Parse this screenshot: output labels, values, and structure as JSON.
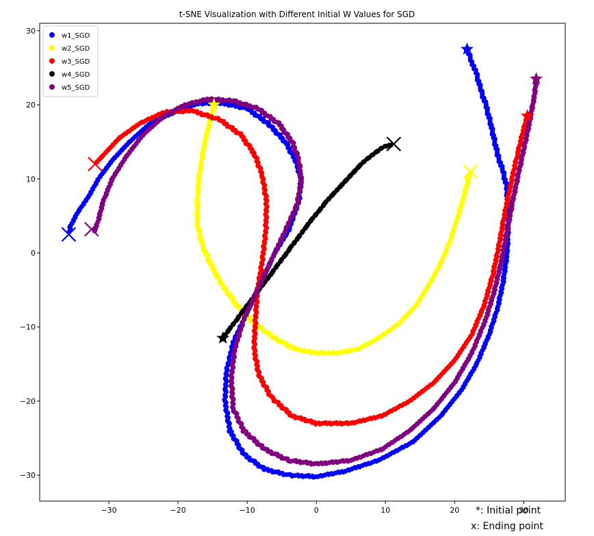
{
  "chart_data": {
    "type": "scatter",
    "title": "t-SNE Visualization with Different Initial W Values for SGD",
    "xlabel": "",
    "ylabel": "",
    "xlim": [
      -40,
      36
    ],
    "ylim": [
      -33.5,
      31
    ],
    "x_ticks": [
      -30,
      -20,
      -10,
      0,
      10,
      20,
      30
    ],
    "y_ticks": [
      -30,
      -20,
      -10,
      0,
      10,
      20,
      30
    ],
    "grid": false,
    "legend_position": "top-left",
    "start_marker": "star",
    "end_marker": "x",
    "notes": [
      "*: Initial point",
      "x: Ending point"
    ],
    "series": [
      {
        "name": "w1_SGD",
        "color": "#0000ff",
        "points": [
          [
            21.8,
            27.5
          ],
          [
            22.5,
            25.8
          ],
          [
            23.2,
            24.0
          ],
          [
            23.8,
            22.0
          ],
          [
            24.5,
            20.0
          ],
          [
            25.2,
            17.5
          ],
          [
            25.8,
            15.0
          ],
          [
            26.3,
            13.0
          ],
          [
            27.0,
            11.0
          ],
          [
            27.5,
            9.0
          ],
          [
            27.8,
            5.0
          ],
          [
            27.6,
            0.0
          ],
          [
            27.0,
            -4.0
          ],
          [
            26.2,
            -7.5
          ],
          [
            25.0,
            -11.0
          ],
          [
            23.2,
            -15.0
          ],
          [
            21.0,
            -18.5
          ],
          [
            18.0,
            -22.0
          ],
          [
            14.0,
            -25.5
          ],
          [
            9.0,
            -28.0
          ],
          [
            4.0,
            -29.5
          ],
          [
            0.0,
            -30.2
          ],
          [
            -4.0,
            -30.0
          ],
          [
            -7.5,
            -29.2
          ],
          [
            -10.5,
            -27.2
          ],
          [
            -12.5,
            -24.0
          ],
          [
            -13.2,
            -20.0
          ],
          [
            -13.0,
            -16.0
          ],
          [
            -12.0,
            -12.0
          ],
          [
            -10.0,
            -8.0
          ],
          [
            -8.0,
            -4.0
          ],
          [
            -6.0,
            0.0
          ],
          [
            -4.0,
            3.0
          ],
          [
            -2.5,
            7.0
          ],
          [
            -2.2,
            10.0
          ],
          [
            -3.0,
            12.5
          ],
          [
            -4.5,
            15.0
          ],
          [
            -7.0,
            17.5
          ],
          [
            -10.0,
            19.5
          ],
          [
            -13.5,
            20.2
          ],
          [
            -17.0,
            20.2
          ],
          [
            -20.5,
            19.0
          ],
          [
            -24.0,
            17.5
          ],
          [
            -27.0,
            15.0
          ],
          [
            -29.5,
            12.5
          ],
          [
            -31.5,
            10.0
          ],
          [
            -33.0,
            7.5
          ],
          [
            -34.5,
            5.5
          ],
          [
            -35.6,
            3.5
          ],
          [
            -35.8,
            2.5
          ]
        ]
      },
      {
        "name": "w2_SGD",
        "color": "#ffff00",
        "points": [
          [
            -14.8,
            20.0
          ],
          [
            -15.3,
            18.0
          ],
          [
            -16.0,
            15.5
          ],
          [
            -16.5,
            13.0
          ],
          [
            -17.0,
            10.0
          ],
          [
            -17.2,
            7.0
          ],
          [
            -17.2,
            4.0
          ],
          [
            -16.5,
            1.0
          ],
          [
            -15.0,
            -2.0
          ],
          [
            -13.5,
            -4.5
          ],
          [
            -11.5,
            -7.0
          ],
          [
            -9.0,
            -9.5
          ],
          [
            -6.0,
            -11.5
          ],
          [
            -3.0,
            -13.0
          ],
          [
            0.0,
            -13.5
          ],
          [
            3.0,
            -13.5
          ],
          [
            6.0,
            -13.0
          ],
          [
            9.0,
            -11.5
          ],
          [
            12.0,
            -9.5
          ],
          [
            14.5,
            -7.0
          ],
          [
            16.5,
            -4.0
          ],
          [
            18.2,
            -1.0
          ],
          [
            19.5,
            2.0
          ],
          [
            20.5,
            5.0
          ],
          [
            21.3,
            7.5
          ],
          [
            22.0,
            10.0
          ],
          [
            22.3,
            11.0
          ]
        ]
      },
      {
        "name": "w3_SGD",
        "color": "#ff0000",
        "points": [
          [
            30.5,
            18.5
          ],
          [
            29.8,
            16.0
          ],
          [
            29.0,
            13.0
          ],
          [
            28.3,
            10.0
          ],
          [
            27.6,
            7.0
          ],
          [
            27.0,
            4.0
          ],
          [
            26.2,
            0.0
          ],
          [
            25.5,
            -3.0
          ],
          [
            24.3,
            -7.0
          ],
          [
            22.5,
            -11.0
          ],
          [
            20.0,
            -14.5
          ],
          [
            17.0,
            -17.5
          ],
          [
            13.5,
            -20.0
          ],
          [
            9.5,
            -22.0
          ],
          [
            5.0,
            -23.0
          ],
          [
            0.0,
            -23.0
          ],
          [
            -3.5,
            -22.0
          ],
          [
            -6.5,
            -19.5
          ],
          [
            -8.3,
            -16.5
          ],
          [
            -9.0,
            -13.0
          ],
          [
            -8.8,
            -9.0
          ],
          [
            -8.5,
            -5.0
          ],
          [
            -7.8,
            -1.0
          ],
          [
            -7.3,
            3.0
          ],
          [
            -7.2,
            7.0
          ],
          [
            -7.8,
            10.5
          ],
          [
            -9.0,
            13.5
          ],
          [
            -11.0,
            16.0
          ],
          [
            -14.0,
            18.0
          ],
          [
            -18.0,
            19.2
          ],
          [
            -22.0,
            19.0
          ],
          [
            -25.5,
            17.5
          ],
          [
            -28.5,
            15.5
          ],
          [
            -31.0,
            13.0
          ],
          [
            -32.0,
            12.0
          ]
        ]
      },
      {
        "name": "w4_SGD",
        "color": "#000000",
        "points": [
          [
            -13.5,
            -11.5
          ],
          [
            -12.5,
            -10.2
          ],
          [
            -11.5,
            -9.0
          ],
          [
            -10.5,
            -7.7
          ],
          [
            -9.5,
            -6.5
          ],
          [
            -8.5,
            -5.2
          ],
          [
            -7.5,
            -4.0
          ],
          [
            -6.5,
            -2.8
          ],
          [
            -5.5,
            -1.5
          ],
          [
            -4.5,
            -0.3
          ],
          [
            -3.5,
            1.0
          ],
          [
            -2.5,
            2.2
          ],
          [
            -1.5,
            3.5
          ],
          [
            -0.5,
            4.7
          ],
          [
            0.5,
            5.8
          ],
          [
            1.5,
            7.0
          ],
          [
            2.5,
            8.0
          ],
          [
            3.5,
            9.0
          ],
          [
            4.5,
            10.0
          ],
          [
            5.5,
            11.0
          ],
          [
            6.5,
            12.0
          ],
          [
            7.5,
            12.8
          ],
          [
            8.5,
            13.5
          ],
          [
            9.5,
            14.2
          ],
          [
            10.5,
            14.5
          ],
          [
            11.2,
            14.7
          ]
        ]
      },
      {
        "name": "w5_SGD",
        "color": "#800080",
        "points": [
          [
            31.8,
            23.5
          ],
          [
            31.6,
            21.5
          ],
          [
            31.2,
            19.5
          ],
          [
            30.7,
            17.0
          ],
          [
            30.0,
            14.0
          ],
          [
            29.2,
            10.5
          ],
          [
            28.4,
            7.0
          ],
          [
            27.6,
            3.0
          ],
          [
            26.8,
            -1.0
          ],
          [
            25.8,
            -5.0
          ],
          [
            24.5,
            -9.0
          ],
          [
            22.5,
            -13.5
          ],
          [
            20.0,
            -17.5
          ],
          [
            17.0,
            -21.0
          ],
          [
            13.5,
            -24.0
          ],
          [
            9.5,
            -26.5
          ],
          [
            5.0,
            -28.0
          ],
          [
            0.0,
            -28.5
          ],
          [
            -4.0,
            -28.0
          ],
          [
            -7.5,
            -26.5
          ],
          [
            -10.5,
            -24.0
          ],
          [
            -12.0,
            -21.0
          ],
          [
            -12.3,
            -17.0
          ],
          [
            -11.8,
            -13.0
          ],
          [
            -10.5,
            -9.0
          ],
          [
            -8.5,
            -5.0
          ],
          [
            -6.5,
            -1.0
          ],
          [
            -4.5,
            3.0
          ],
          [
            -2.8,
            6.5
          ],
          [
            -2.2,
            9.5
          ],
          [
            -2.5,
            12.5
          ],
          [
            -3.5,
            15.0
          ],
          [
            -5.5,
            17.5
          ],
          [
            -8.5,
            19.5
          ],
          [
            -12.0,
            20.5
          ],
          [
            -15.5,
            20.8
          ],
          [
            -19.0,
            20.0
          ],
          [
            -22.0,
            18.5
          ],
          [
            -25.0,
            16.0
          ],
          [
            -27.5,
            13.0
          ],
          [
            -29.5,
            10.0
          ],
          [
            -30.8,
            7.0
          ],
          [
            -31.5,
            4.5
          ],
          [
            -32.0,
            3.0
          ],
          [
            -32.5,
            3.2
          ]
        ]
      }
    ]
  }
}
